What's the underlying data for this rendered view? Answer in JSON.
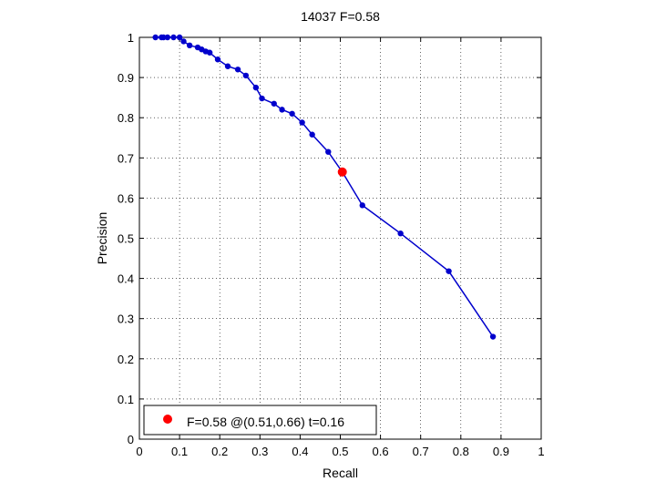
{
  "chart_data": {
    "type": "line",
    "title": "14037 F=0.58",
    "xlabel": "Recall",
    "ylabel": "Precision",
    "xlim": [
      0,
      1
    ],
    "ylim": [
      0,
      1
    ],
    "grid": true,
    "x_ticks": [
      "0",
      "0.1",
      "0.2",
      "0.3",
      "0.4",
      "0.5",
      "0.6",
      "0.7",
      "0.8",
      "0.9",
      "1"
    ],
    "y_ticks": [
      "0",
      "0.1",
      "0.2",
      "0.3",
      "0.4",
      "0.5",
      "0.6",
      "0.7",
      "0.8",
      "0.9",
      "1"
    ],
    "series": [
      {
        "color": "#0000cc",
        "x": [
          0.04,
          0.055,
          0.06,
          0.07,
          0.085,
          0.1,
          0.11,
          0.125,
          0.145,
          0.155,
          0.165,
          0.175,
          0.195,
          0.22,
          0.245,
          0.265,
          0.29,
          0.305,
          0.335,
          0.355,
          0.38,
          0.405,
          0.43,
          0.47,
          0.505,
          0.555,
          0.65,
          0.77,
          0.88
        ],
        "y": [
          1.0,
          1.0,
          1.0,
          1.0,
          1.0,
          1.0,
          0.99,
          0.98,
          0.975,
          0.97,
          0.965,
          0.962,
          0.945,
          0.928,
          0.92,
          0.905,
          0.875,
          0.848,
          0.835,
          0.82,
          0.81,
          0.788,
          0.758,
          0.715,
          0.665,
          0.582,
          0.512,
          0.418,
          0.255
        ]
      }
    ],
    "highlight": {
      "x": 0.505,
      "y": 0.665,
      "color": "#ff0000"
    },
    "legend": {
      "position": "bottom-left",
      "text": "F=0.58 @(0.51,0.66) t=0.16"
    }
  }
}
